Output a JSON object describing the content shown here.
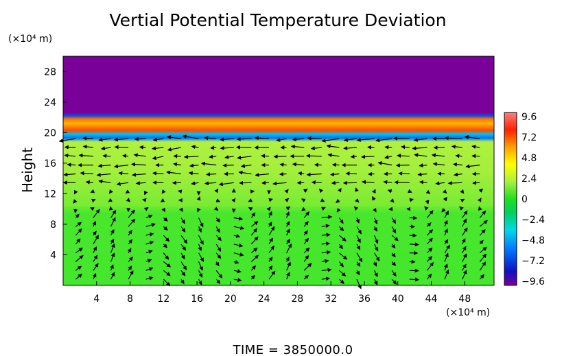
{
  "chart_data": {
    "type": "heatmap",
    "title": "Vertial Potential Temperature Deviation",
    "ylabel": "Height",
    "y_unit": "(×10⁴ m)",
    "x_unit": "(×10⁴ m)",
    "xlim": [
      0,
      51.5
    ],
    "ylim": [
      0,
      30
    ],
    "x_ticks": [
      "4",
      "8",
      "12",
      "16",
      "20",
      "24",
      "28",
      "32",
      "36",
      "40",
      "44",
      "48"
    ],
    "y_ticks": [
      "4",
      "8",
      "12",
      "16",
      "20",
      "24",
      "28"
    ],
    "x_tick_values": [
      4,
      8,
      12,
      16,
      20,
      24,
      28,
      32,
      36,
      40,
      44,
      48
    ],
    "y_tick_values": [
      4,
      8,
      12,
      16,
      20,
      24,
      28
    ],
    "colorbar": {
      "labels": [
        "9.6",
        "7.2",
        "4.8",
        "2.4",
        "0",
        "−2.4",
        "−4.8",
        "−7.2",
        "−9.6"
      ],
      "values": [
        9.6,
        7.2,
        4.8,
        2.4,
        0,
        -2.4,
        -4.8,
        -7.2,
        -9.6
      ],
      "range": [
        -9.6,
        9.6
      ]
    },
    "field_profile": [
      {
        "height": 0,
        "value": 0.5
      },
      {
        "height": 9.5,
        "value": 0.6
      },
      {
        "height": 10.5,
        "value": 1.5
      },
      {
        "height": 15,
        "value": 2.2
      },
      {
        "height": 18.8,
        "value": 2.4
      },
      {
        "height": 19.3,
        "value": -5
      },
      {
        "height": 19.8,
        "value": -3
      },
      {
        "height": 20.3,
        "value": 7.5
      },
      {
        "height": 21.2,
        "value": 6
      },
      {
        "height": 21.8,
        "value": 7
      },
      {
        "height": 22.2,
        "value": -6
      },
      {
        "height": 22.6,
        "value": -10
      },
      {
        "height": 30,
        "value": -10
      }
    ],
    "vector_field": "wind arrows overlaid below 20"
  },
  "footer": {
    "time_label": "TIME  =  3850000.0"
  },
  "colors": {
    "top_layer": "#9900a0",
    "lower_field": "#2ee82e",
    "mid_field": "#b4f040",
    "arrows": "#000000"
  }
}
